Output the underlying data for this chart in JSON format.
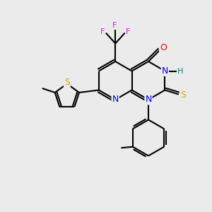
{
  "background_color": "#ebebeb",
  "bond_color": "#000000",
  "atom_colors": {
    "N": "#0000ff",
    "O": "#ff0000",
    "S": "#ccaa00",
    "F": "#ff00ff",
    "H": "#008080",
    "C": "#000000"
  },
  "font_size": 9,
  "lw": 1.5
}
